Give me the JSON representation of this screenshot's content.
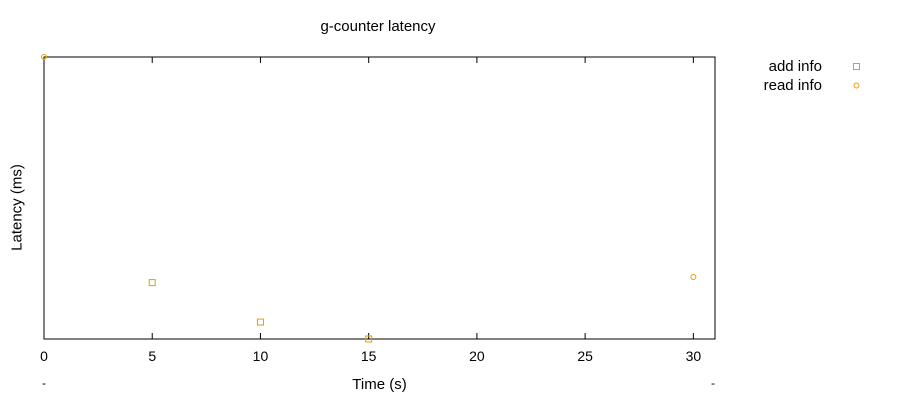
{
  "chart_data": {
    "type": "scatter",
    "title": "g-counter latency",
    "xlabel": "Time (s)",
    "ylabel": "Latency (ms)",
    "xlim": [
      0,
      31
    ],
    "ylim": [
      0,
      1
    ],
    "x_ticks": [
      0,
      5,
      10,
      15,
      20,
      25,
      30
    ],
    "x_minor_labels": [
      "-",
      "-"
    ],
    "grid": false,
    "legend_position": "right",
    "series": [
      {
        "name": "add info",
        "marker": "square",
        "color": "#e69f00",
        "points": [
          {
            "x": 5,
            "y": 0.2
          },
          {
            "x": 10,
            "y": 0.06
          },
          {
            "x": 15,
            "y": 0.0
          }
        ]
      },
      {
        "name": "read info",
        "marker": "circle",
        "color": "#e69f00",
        "points": [
          {
            "x": 0,
            "y": 1.0
          },
          {
            "x": 30,
            "y": 0.22
          }
        ]
      }
    ]
  }
}
